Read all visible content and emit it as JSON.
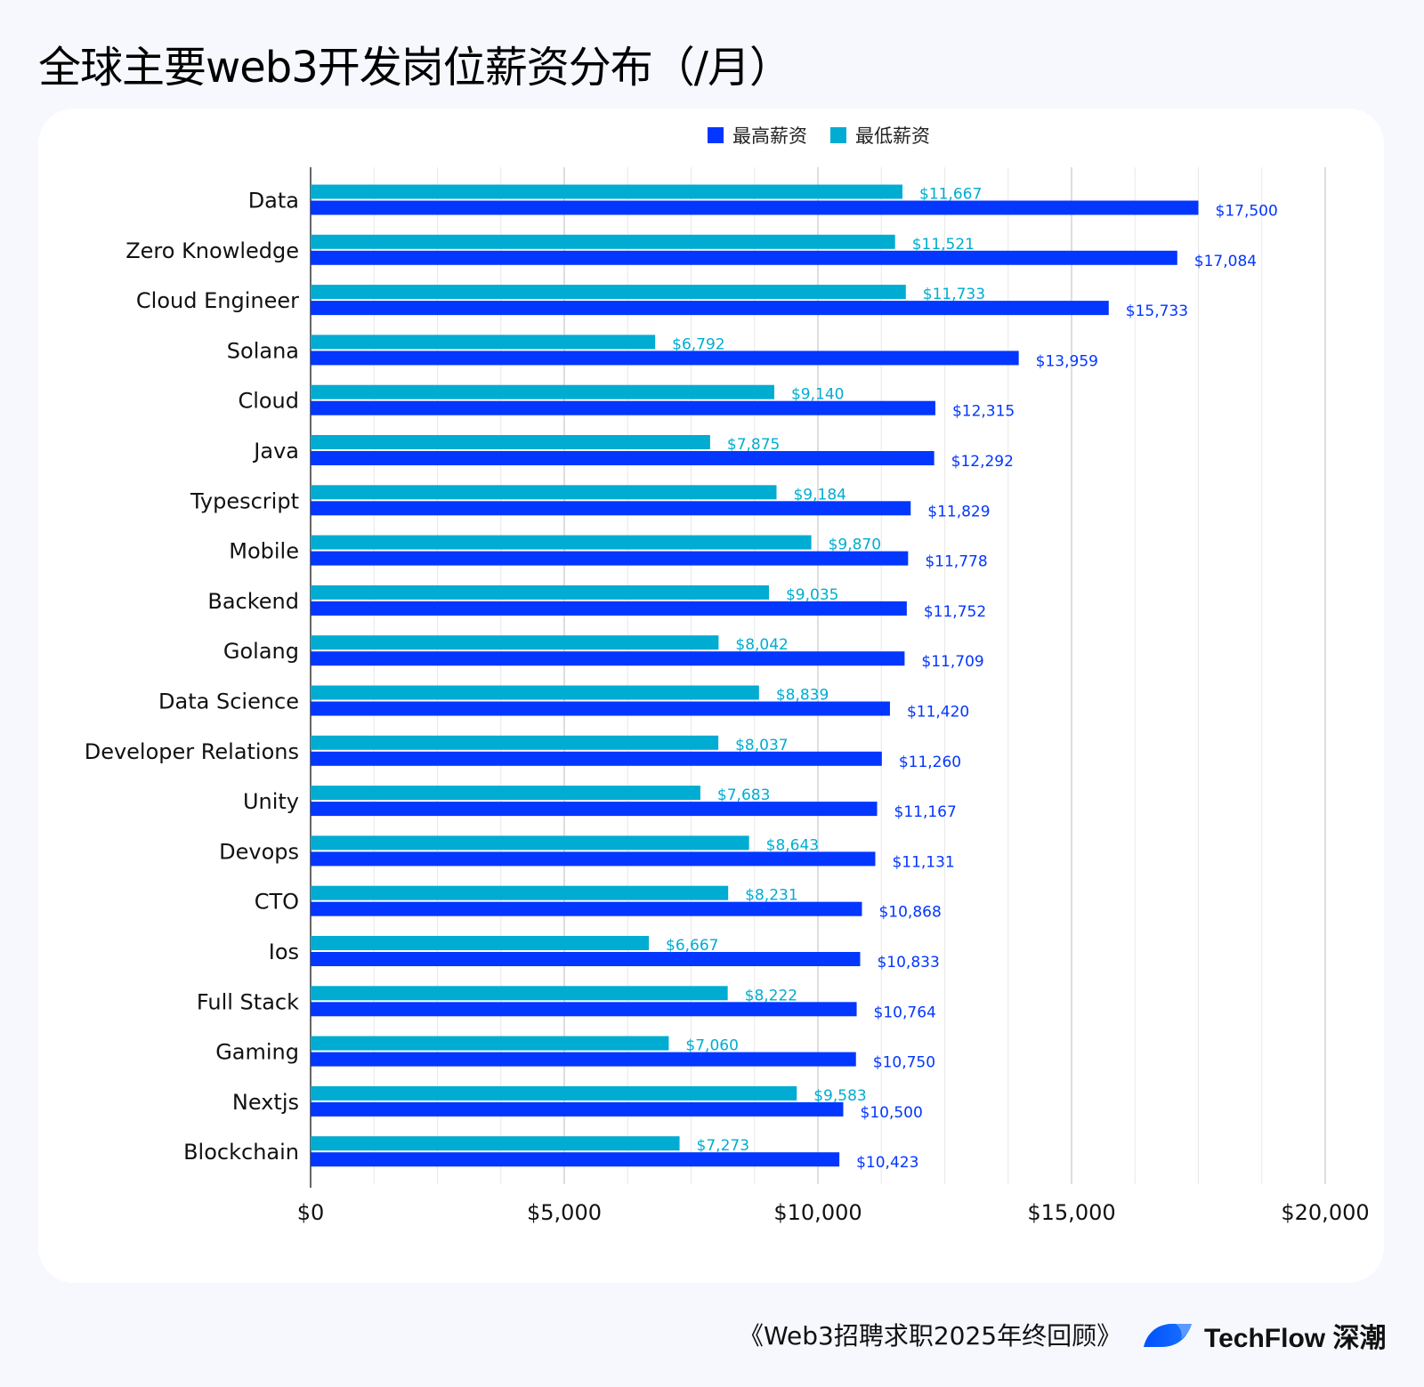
{
  "title": "全球主要web3开发岗位薪资分布（/月）",
  "footer": {
    "source": "《Web3招聘求职2025年终回顾》",
    "brand": "TechFlow 深潮"
  },
  "colors": {
    "max": "#0336ff",
    "min": "#00acd1",
    "background": "#f6f8fd"
  },
  "chart_data": {
    "type": "bar",
    "orientation": "horizontal",
    "title": "全球主要web3开发岗位薪资分布（/月）",
    "categories": [
      "Data",
      "Zero Knowledge",
      "Cloud Engineer",
      "Solana",
      "Cloud",
      "Java",
      "Typescript",
      "Mobile",
      "Backend",
      "Golang",
      "Data Science",
      "Developer Relations",
      "Unity",
      "Devops",
      "CTO",
      "Ios",
      "Full Stack",
      "Gaming",
      "Nextjs",
      "Blockchain"
    ],
    "series": [
      {
        "name": "最高薪资",
        "color": "#0336ff",
        "values": [
          17500,
          17084,
          15733,
          13959,
          12315,
          12292,
          11829,
          11778,
          11752,
          11709,
          11420,
          11260,
          11167,
          11131,
          10868,
          10833,
          10764,
          10750,
          10500,
          10423
        ]
      },
      {
        "name": "最低薪资",
        "color": "#00acd1",
        "values": [
          11667,
          11521,
          11733,
          6792,
          9140,
          7875,
          9184,
          9870,
          9035,
          8042,
          8839,
          8037,
          7683,
          8643,
          8231,
          6667,
          8222,
          7060,
          9583,
          7273
        ]
      }
    ],
    "xlim": [
      0,
      20000
    ],
    "x_ticks": [
      "$0",
      "$5,000",
      "$10,000",
      "$15,000",
      "$20,000"
    ],
    "x_tick_values": [
      0,
      5000,
      10000,
      15000,
      20000
    ],
    "grid": true,
    "legend": "top-center",
    "data_labels": true
  }
}
